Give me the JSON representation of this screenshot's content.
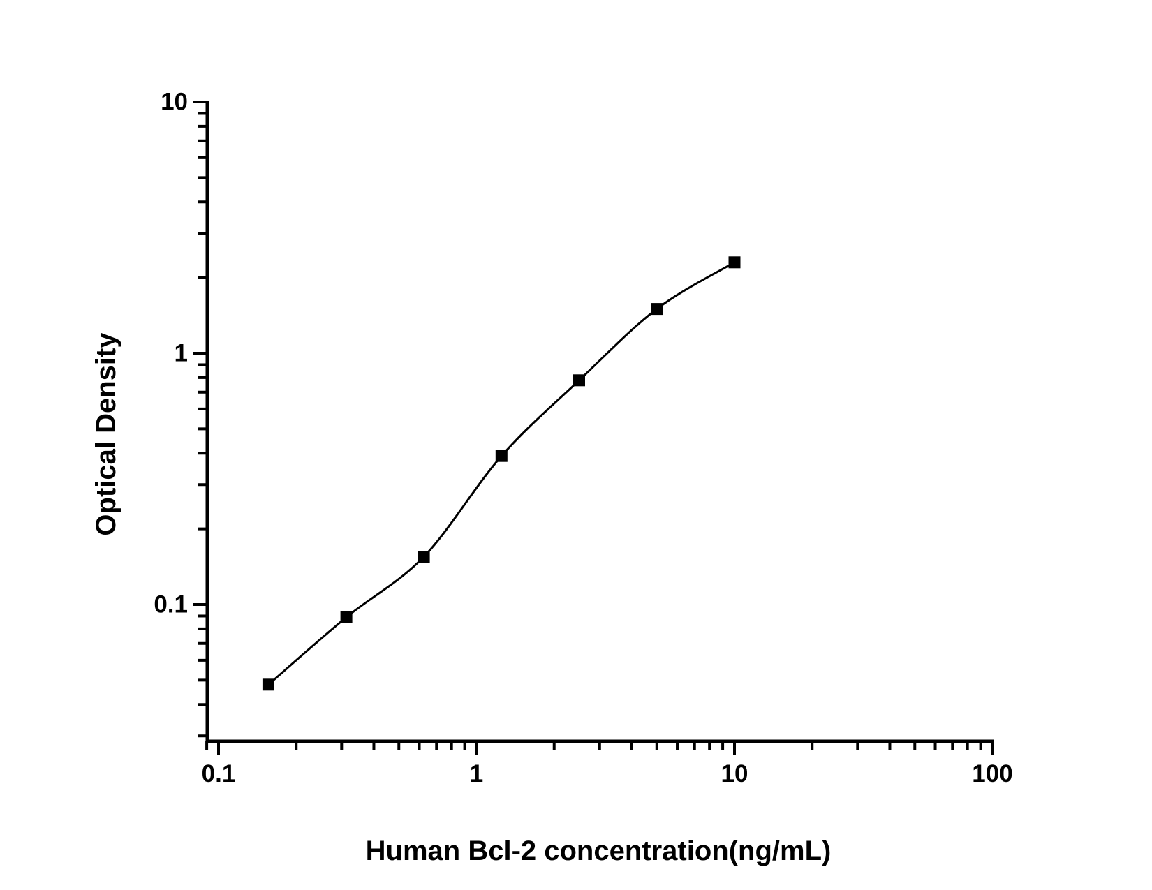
{
  "chart_data": {
    "type": "scatter",
    "title": "",
    "xlabel": "Human Bcl-2 concentration(ng/mL)",
    "ylabel": "Optical Density",
    "x_scale": "log",
    "y_scale": "log",
    "x": [
      0.156,
      0.313,
      0.625,
      1.25,
      2.5,
      5,
      10
    ],
    "y": [
      0.048,
      0.089,
      0.155,
      0.39,
      0.78,
      1.5,
      2.3
    ],
    "marker": "filled-square",
    "line_style": "smooth-fit-curve",
    "color": "#000000",
    "background": "#ffffff",
    "x_major_ticks": [
      0.1,
      1,
      10,
      100
    ],
    "x_major_tick_labels": [
      "0.1",
      "1",
      "10",
      "100"
    ],
    "y_major_ticks": [
      10,
      1,
      0.1
    ],
    "y_major_tick_labels": [
      "10",
      "1",
      "0.1"
    ],
    "xlim": [
      0.09,
      100
    ],
    "ylim": [
      0.0286,
      10
    ],
    "grid": false,
    "legend": false
  }
}
